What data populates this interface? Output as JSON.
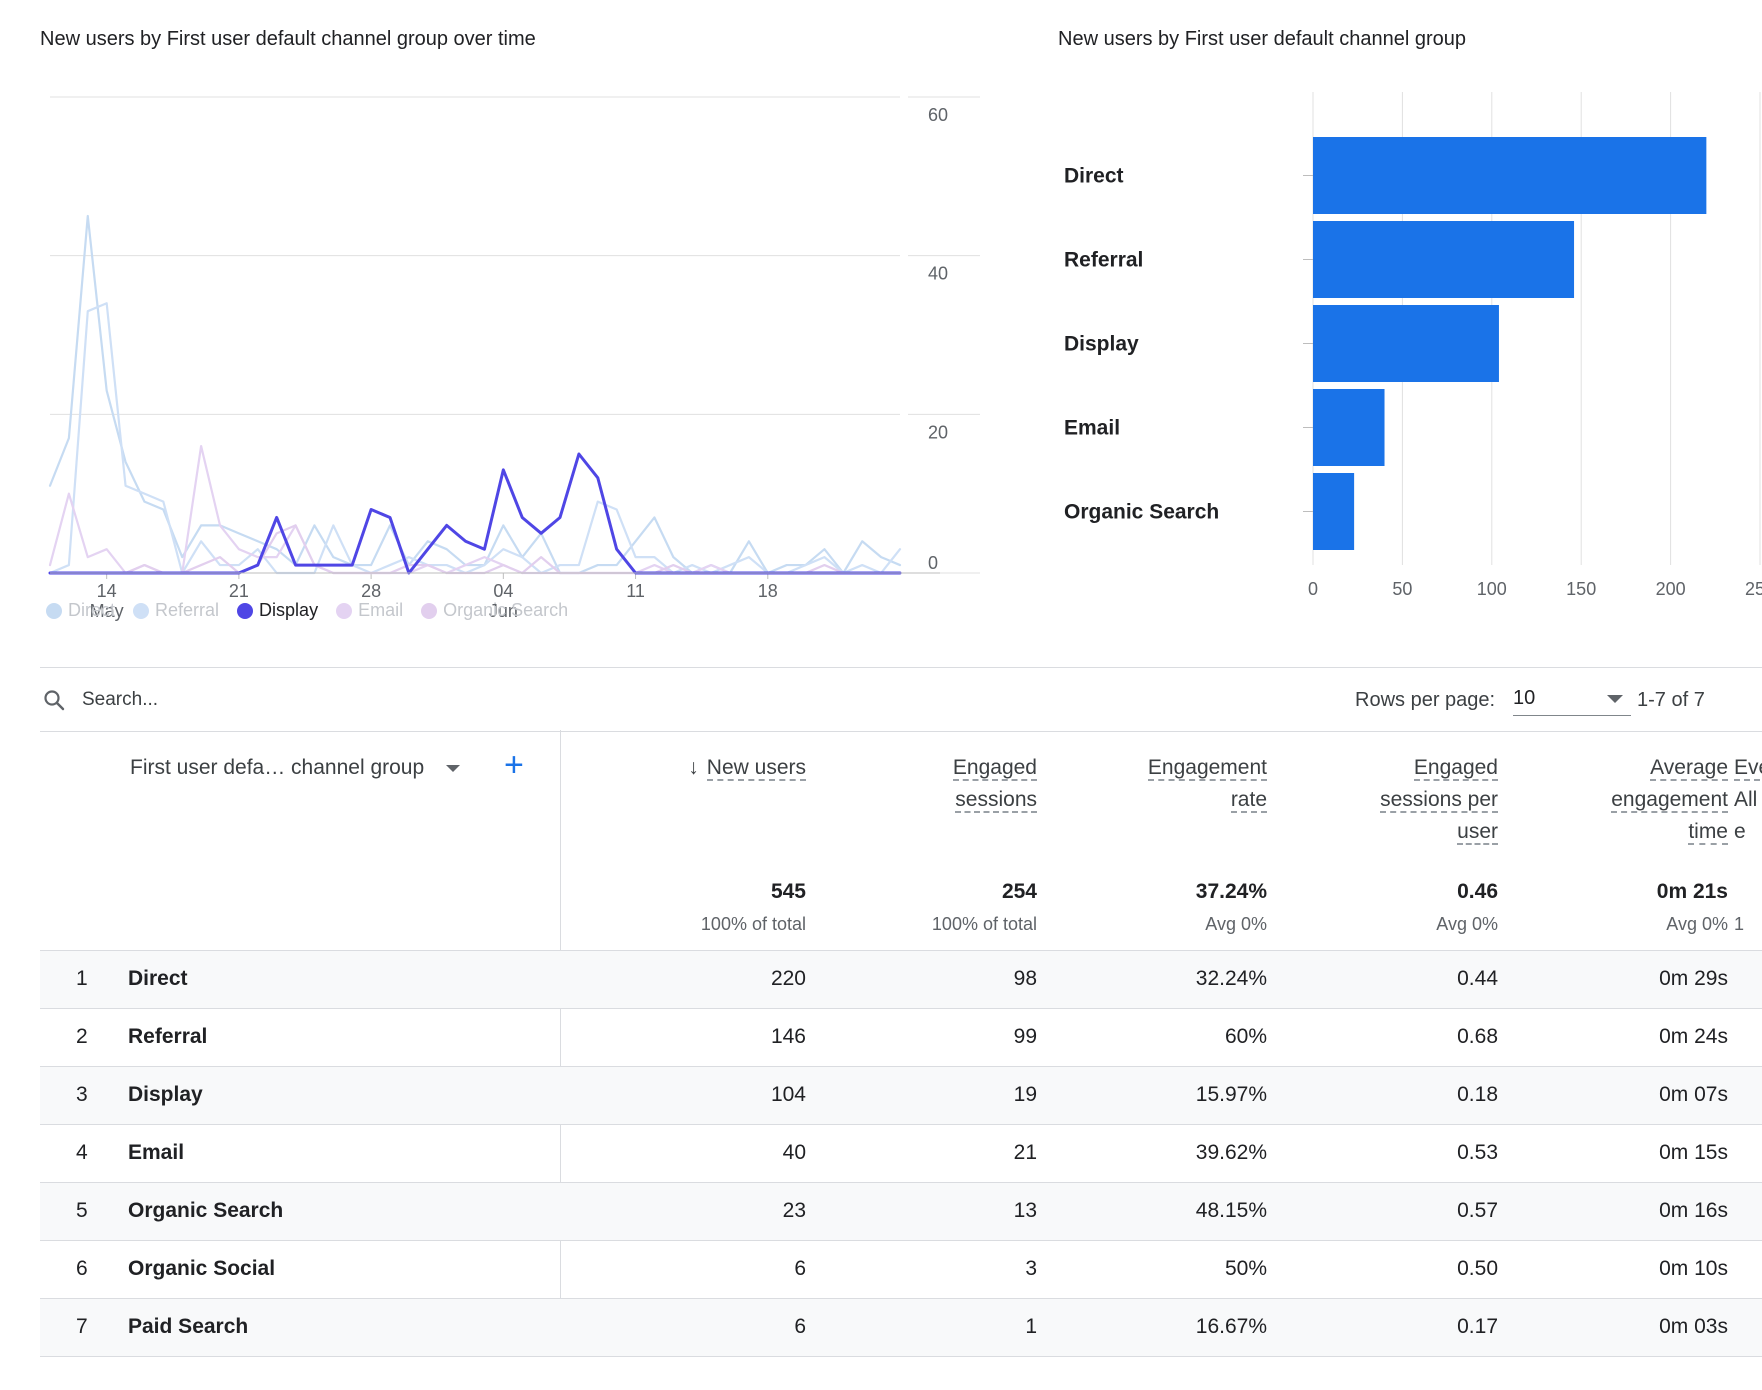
{
  "line_card": {
    "title": "New users by First user default channel group over time"
  },
  "bar_card": {
    "title": "New users by First user default channel group"
  },
  "chart_data": [
    {
      "type": "line",
      "title": "New users by First user default channel group over time",
      "y_ticks": [
        "60",
        "40",
        "20",
        "0"
      ],
      "ylim": [
        0,
        60
      ],
      "x_tick_labels": [
        {
          "day": "14",
          "month": "May",
          "x_index": 3
        },
        {
          "day": "21",
          "month": "",
          "x_index": 10
        },
        {
          "day": "28",
          "month": "",
          "x_index": 17
        },
        {
          "day": "04",
          "month": "Jun",
          "x_index": 24
        },
        {
          "day": "11",
          "month": "",
          "x_index": 31
        },
        {
          "day": "18",
          "month": "",
          "x_index": 38
        }
      ],
      "x_count": 46,
      "grid": true,
      "legend_position": "bottom-left",
      "series": [
        {
          "name": "Direct",
          "color": "#c6dbf2",
          "active": false,
          "values": [
            11,
            17,
            45,
            23,
            14,
            9,
            8,
            2,
            6,
            6,
            5,
            4,
            3,
            1,
            6,
            2,
            1,
            1,
            6,
            1,
            4,
            3,
            1,
            1,
            6,
            2,
            5,
            0,
            0,
            1,
            1,
            4,
            7,
            2,
            0,
            1,
            0,
            4,
            0,
            1,
            1,
            3,
            0,
            4,
            2,
            1
          ]
        },
        {
          "name": "Referral",
          "color": "#cfe0f6",
          "active": false,
          "values": [
            0,
            1,
            33,
            34,
            11,
            10,
            9,
            0,
            4,
            1,
            1,
            3,
            0,
            0,
            0,
            6,
            1,
            0,
            1,
            2,
            1,
            1,
            0,
            1,
            3,
            2,
            0,
            1,
            1,
            9,
            8,
            2,
            2,
            0,
            1,
            0,
            1,
            2,
            0,
            0,
            1,
            2,
            0,
            1,
            0,
            3
          ]
        },
        {
          "name": "Display",
          "color": "#4f46e5",
          "active": true,
          "values": [
            0,
            0,
            0,
            0,
            0,
            0,
            0,
            0,
            0,
            0,
            0,
            1,
            7,
            1,
            1,
            1,
            1,
            8,
            7,
            0,
            3,
            6,
            4,
            3,
            13,
            7,
            5,
            7,
            15,
            12,
            3,
            0,
            0,
            0,
            0,
            0,
            0,
            0,
            0,
            0,
            0,
            0,
            0,
            0,
            0,
            0
          ]
        },
        {
          "name": "Email",
          "color": "#e4d3f2",
          "active": false,
          "values": [
            1,
            10,
            2,
            3,
            0,
            1,
            0,
            0,
            16,
            6,
            3,
            2,
            2,
            6,
            1,
            0,
            0,
            0,
            0,
            0,
            1,
            0,
            1,
            2,
            1,
            0,
            0,
            0,
            0,
            0,
            0,
            0,
            1,
            0,
            0,
            1,
            0,
            0,
            0,
            0,
            0,
            0,
            0,
            0,
            0,
            0
          ]
        },
        {
          "name": "Organic Search",
          "color": "#e2cfee",
          "active": false,
          "values": [
            0,
            0,
            0,
            0,
            0,
            1,
            0,
            0,
            1,
            2,
            0,
            1,
            5,
            6,
            1,
            0,
            0,
            0,
            0,
            1,
            1,
            0,
            0,
            0,
            1,
            0,
            2,
            0,
            0,
            0,
            0,
            0,
            0,
            1,
            0,
            0,
            0,
            0,
            0,
            0,
            0,
            1,
            0,
            0,
            0,
            0
          ]
        }
      ]
    },
    {
      "type": "bar",
      "orientation": "horizontal",
      "title": "New users by First user default channel group",
      "categories": [
        "Direct",
        "Referral",
        "Display",
        "Email",
        "Organic Search"
      ],
      "values": [
        220,
        146,
        104,
        40,
        23
      ],
      "color": "#1a73e8",
      "xlim": [
        0,
        250
      ],
      "x_ticks": [
        0,
        50,
        100,
        150,
        200,
        250
      ],
      "grid": true
    }
  ],
  "table": {
    "search_placeholder": "Search...",
    "rows_per_page_label": "Rows per page:",
    "rows_per_page_value": "10",
    "pagination": "1-7 of 7",
    "dimension_header": "First user defa… channel group",
    "columns": [
      {
        "key": "new_users",
        "label_lines": [
          "New users"
        ],
        "sorted": true,
        "total": "545",
        "total_sub": "100% of total"
      },
      {
        "key": "engaged_sessions",
        "label_lines": [
          "Engaged",
          "sessions"
        ],
        "total": "254",
        "total_sub": "100% of total"
      },
      {
        "key": "engagement_rate",
        "label_lines": [
          "Engagement",
          "rate"
        ],
        "total": "37.24%",
        "total_sub": "Avg 0%"
      },
      {
        "key": "engaged_sessions_per_user",
        "label_lines": [
          "Engaged",
          "sessions per",
          "user"
        ],
        "total": "0.46",
        "total_sub": "Avg 0%"
      },
      {
        "key": "avg_engagement_time",
        "label_lines": [
          "Average",
          "engagement",
          "time"
        ],
        "total": "0m 21s",
        "total_sub": "Avg 0%"
      },
      {
        "key": "event_count",
        "label_lines": [
          "Eve",
          "All e"
        ],
        "total": "",
        "total_sub": "1"
      }
    ],
    "rows": [
      {
        "index": "1",
        "name": "Direct",
        "cells": [
          "220",
          "98",
          "32.24%",
          "0.44",
          "0m 29s"
        ]
      },
      {
        "index": "2",
        "name": "Referral",
        "cells": [
          "146",
          "99",
          "60%",
          "0.68",
          "0m 24s"
        ]
      },
      {
        "index": "3",
        "name": "Display",
        "cells": [
          "104",
          "19",
          "15.97%",
          "0.18",
          "0m 07s"
        ]
      },
      {
        "index": "4",
        "name": "Email",
        "cells": [
          "40",
          "21",
          "39.62%",
          "0.53",
          "0m 15s"
        ]
      },
      {
        "index": "5",
        "name": "Organic Search",
        "cells": [
          "23",
          "13",
          "48.15%",
          "0.57",
          "0m 16s"
        ]
      },
      {
        "index": "6",
        "name": "Organic Social",
        "cells": [
          "6",
          "3",
          "50%",
          "0.50",
          "0m 10s"
        ]
      },
      {
        "index": "7",
        "name": "Paid Search",
        "cells": [
          "6",
          "1",
          "16.67%",
          "0.17",
          "0m 03s"
        ]
      }
    ]
  }
}
